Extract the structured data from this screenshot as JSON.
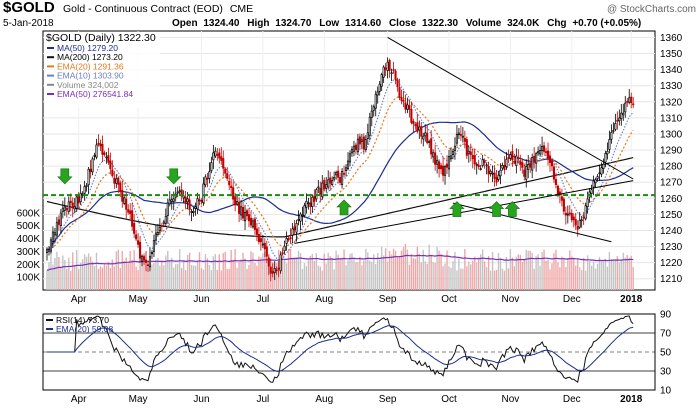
{
  "header": {
    "symbol": "$GOLD",
    "name": "Gold - Continuous Contract (EOD)",
    "exchange": "CME",
    "date": "5-Jan-2018",
    "open_label": "Open",
    "open": "1324.40",
    "high_label": "High",
    "high": "1324.70",
    "low_label": "Low",
    "low": "1314.60",
    "close_label": "Close",
    "close": "1322.30",
    "volume_label": "Volume",
    "volume": "324.0K",
    "chg_label": "Chg",
    "chg": "+0.70 (+0.05%)",
    "watermark": "@ StockCharts.com"
  },
  "chart_data": [
    {
      "type": "candlestick",
      "title": "$GOLD (Daily) 1322.30",
      "legend": [
        {
          "label": "MA(50) 1279.20",
          "color": "#1c2e8f"
        },
        {
          "label": "MA(200) 1273.20",
          "color": "#111111"
        },
        {
          "label": "EMA(20) 1291.36",
          "color": "#e4781c"
        },
        {
          "label": "EMA(10) 1303.90",
          "color": "#6b7fc4"
        },
        {
          "label": "Volume 324,002",
          "color": "#888888"
        },
        {
          "label": "EMA(50) 276541.84",
          "color": "#7b2dbd"
        }
      ],
      "price_ticks": [
        "1360",
        "1350",
        "1340",
        "1330",
        "1320",
        "1310",
        "1300",
        "1290",
        "1280",
        "1270",
        "1260",
        "1250",
        "1240",
        "1230",
        "1220",
        "1210"
      ],
      "ylim": [
        1203,
        1364
      ],
      "volume_ticks": [
        "600K",
        "500K",
        "400K",
        "300K",
        "200K",
        "100K"
      ],
      "volume_ylim": [
        0,
        700
      ],
      "x_labels": [
        "Apr",
        "May",
        "Jun",
        "Jul",
        "Aug",
        "Sep",
        "Oct",
        "Nov",
        "Dec",
        "2018"
      ],
      "x_label_days": [
        16,
        46,
        78,
        109,
        140,
        172,
        203,
        234,
        265,
        295
      ],
      "x_range_days": [
        0,
        305
      ],
      "support_level": 1262,
      "trendlines": [
        {
          "name": "upper-resistance",
          "from": [
            172,
            1360
          ],
          "to": [
            296,
            1272
          ]
        },
        {
          "name": "lower-support",
          "from": [
            205,
            1257
          ],
          "to": [
            285,
            1233
          ]
        },
        {
          "name": "ma200-rising",
          "from": [
            125,
            1232
          ],
          "to": [
            296,
            1271
          ]
        }
      ],
      "signal_arrows_days": [
        9,
        64,
        207,
        227,
        235
      ],
      "signal_arrow_below_day": 150,
      "price_anchors": [
        [
          0,
          1228
        ],
        [
          5,
          1245
        ],
        [
          10,
          1255
        ],
        [
          15,
          1258
        ],
        [
          20,
          1270
        ],
        [
          25,
          1294
        ],
        [
          28,
          1288
        ],
        [
          32,
          1278
        ],
        [
          36,
          1266
        ],
        [
          40,
          1255
        ],
        [
          44,
          1240
        ],
        [
          47,
          1224
        ],
        [
          50,
          1218
        ],
        [
          54,
          1232
        ],
        [
          58,
          1245
        ],
        [
          62,
          1258
        ],
        [
          66,
          1265
        ],
        [
          70,
          1258
        ],
        [
          74,
          1254
        ],
        [
          78,
          1262
        ],
        [
          82,
          1280
        ],
        [
          86,
          1290
        ],
        [
          88,
          1286
        ],
        [
          91,
          1270
        ],
        [
          95,
          1258
        ],
        [
          99,
          1250
        ],
        [
          103,
          1245
        ],
        [
          107,
          1236
        ],
        [
          111,
          1222
        ],
        [
          114,
          1210
        ],
        [
          117,
          1220
        ],
        [
          121,
          1232
        ],
        [
          125,
          1242
        ],
        [
          129,
          1252
        ],
        [
          133,
          1258
        ],
        [
          137,
          1264
        ],
        [
          141,
          1270
        ],
        [
          145,
          1274
        ],
        [
          148,
          1270
        ],
        [
          151,
          1280
        ],
        [
          154,
          1290
        ],
        [
          157,
          1295
        ],
        [
          160,
          1292
        ],
        [
          163,
          1310
        ],
        [
          166,
          1325
        ],
        [
          169,
          1338
        ],
        [
          172,
          1346
        ],
        [
          174,
          1340
        ],
        [
          176,
          1334
        ],
        [
          178,
          1326
        ],
        [
          180,
          1320
        ],
        [
          183,
          1312
        ],
        [
          186,
          1305
        ],
        [
          190,
          1300
        ],
        [
          193,
          1294
        ],
        [
          196,
          1284
        ],
        [
          199,
          1275
        ],
        [
          202,
          1280
        ],
        [
          205,
          1290
        ],
        [
          208,
          1300
        ],
        [
          211,
          1293
        ],
        [
          214,
          1284
        ],
        [
          217,
          1278
        ],
        [
          220,
          1282
        ],
        [
          223,
          1276
        ],
        [
          226,
          1271
        ],
        [
          229,
          1276
        ],
        [
          232,
          1282
        ],
        [
          235,
          1286
        ],
        [
          238,
          1282
        ],
        [
          241,
          1276
        ],
        [
          244,
          1281
        ],
        [
          247,
          1285
        ],
        [
          250,
          1292
        ],
        [
          253,
          1286
        ],
        [
          256,
          1274
        ],
        [
          259,
          1262
        ],
        [
          262,
          1252
        ],
        [
          265,
          1245
        ],
        [
          268,
          1242
        ],
        [
          271,
          1250
        ],
        [
          274,
          1262
        ],
        [
          277,
          1270
        ],
        [
          280,
          1280
        ],
        [
          283,
          1290
        ],
        [
          286,
          1303
        ],
        [
          289,
          1312
        ],
        [
          292,
          1318
        ],
        [
          295,
          1322
        ],
        [
          296,
          1322
        ]
      ],
      "price_noise_seed": 7
    },
    {
      "type": "line",
      "title": "RSI(14) 73.70",
      "legend": [
        {
          "label": "RSI(14) 73.70",
          "color": "#111111"
        },
        {
          "label": "EMA(20) 59.08",
          "color": "#1c2e8f"
        }
      ],
      "ylim": [
        10,
        90
      ],
      "ticks": [
        "90",
        "70",
        "50",
        "30",
        "10"
      ],
      "reference_levels": [
        70,
        50,
        30
      ]
    }
  ]
}
